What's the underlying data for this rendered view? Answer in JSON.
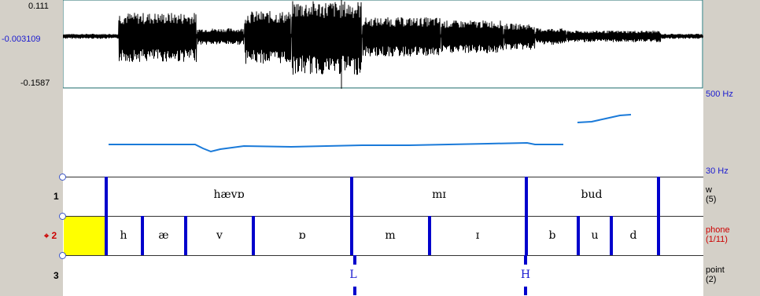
{
  "colors": {
    "wave": "#000000",
    "pitch": "#1a7ad9",
    "boundary": "#0000cc",
    "selection": "#ffff00",
    "hz_label": "#1a1ad0",
    "active_tier": "#cc0000"
  },
  "waveform": {
    "ymax": "0.111",
    "ymid": "-0.003109",
    "ymin": "-0.1587"
  },
  "pitch": {
    "top_label": "500 Hz",
    "bottom_label": "30 Hz"
  },
  "tiers": [
    {
      "number": "1",
      "name": "w",
      "count": "(5)",
      "intervals": [
        "hævɒ",
        "mɪ",
        "bud"
      ]
    },
    {
      "number": "2",
      "name": "phone",
      "count": "(1/11)",
      "active_marker": "⌖",
      "intervals": [
        "h",
        "æ",
        "v",
        "ɒ",
        "m",
        "ɪ",
        "b",
        "u",
        "d"
      ]
    },
    {
      "number": "3",
      "name": "point",
      "count": "(2)",
      "points": [
        "L",
        "H"
      ]
    }
  ]
}
